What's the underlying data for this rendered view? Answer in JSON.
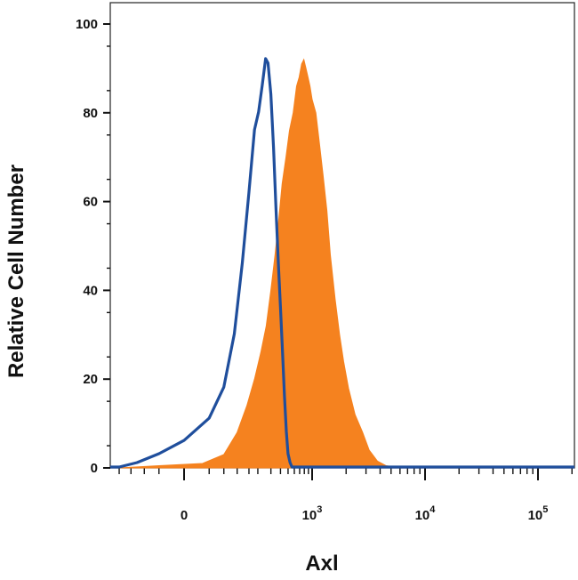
{
  "chart_data": {
    "type": "area",
    "title": "",
    "xlabel": "Axl",
    "ylabel": "Relative Cell Number",
    "x_scale": "biexponential",
    "x_ticks": [
      {
        "value": 0,
        "base": "0",
        "exp": ""
      },
      {
        "value": 1000,
        "base": "10",
        "exp": "3"
      },
      {
        "value": 10000,
        "base": "10",
        "exp": "4"
      },
      {
        "value": 100000,
        "base": "10",
        "exp": "5"
      }
    ],
    "y_ticks": [
      0,
      20,
      40,
      60,
      80,
      100
    ],
    "ylim": [
      0,
      100
    ],
    "grid": false,
    "legend": "none",
    "series": [
      {
        "style": "filled",
        "color": "#f5821f",
        "points": [
          [
            -150,
            0
          ],
          [
            -30,
            0.5
          ],
          [
            20,
            1
          ],
          [
            60,
            3
          ],
          [
            100,
            8
          ],
          [
            140,
            14
          ],
          [
            180,
            20
          ],
          [
            220,
            26
          ],
          [
            260,
            32
          ],
          [
            300,
            40
          ],
          [
            340,
            48
          ],
          [
            380,
            56
          ],
          [
            420,
            64
          ],
          [
            470,
            70
          ],
          [
            520,
            76
          ],
          [
            580,
            80
          ],
          [
            640,
            86
          ],
          [
            690,
            88
          ],
          [
            740,
            91
          ],
          [
            790,
            92
          ],
          [
            840,
            90
          ],
          [
            890,
            88
          ],
          [
            940,
            86
          ],
          [
            1000,
            83
          ],
          [
            1080,
            80
          ],
          [
            1150,
            74
          ],
          [
            1250,
            66
          ],
          [
            1350,
            58
          ],
          [
            1450,
            48
          ],
          [
            1600,
            38
          ],
          [
            1750,
            30
          ],
          [
            1900,
            24
          ],
          [
            2100,
            18
          ],
          [
            2400,
            12
          ],
          [
            2800,
            8
          ],
          [
            3200,
            4
          ],
          [
            3800,
            1.5
          ],
          [
            4500,
            0.5
          ],
          [
            6000,
            0
          ]
        ]
      },
      {
        "style": "outline",
        "color": "#1f4e9c",
        "points": [
          [
            -150,
            0
          ],
          [
            -80,
            1
          ],
          [
            -30,
            3
          ],
          [
            0,
            6
          ],
          [
            30,
            11
          ],
          [
            60,
            18
          ],
          [
            90,
            30
          ],
          [
            120,
            46
          ],
          [
            150,
            62
          ],
          [
            180,
            76
          ],
          [
            205,
            80
          ],
          [
            230,
            86
          ],
          [
            255,
            92
          ],
          [
            275,
            91
          ],
          [
            300,
            84
          ],
          [
            325,
            72
          ],
          [
            350,
            58
          ],
          [
            375,
            46
          ],
          [
            400,
            36
          ],
          [
            425,
            26
          ],
          [
            450,
            16
          ],
          [
            475,
            8
          ],
          [
            500,
            3
          ],
          [
            530,
            1
          ],
          [
            560,
            0
          ]
        ]
      }
    ]
  }
}
